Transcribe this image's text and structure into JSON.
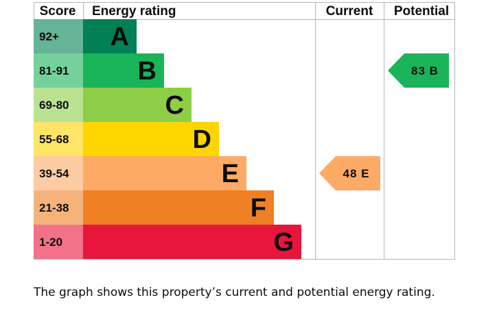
{
  "chart_data": {
    "type": "table",
    "title": "Energy rating",
    "columns": {
      "score": "Score",
      "rating": "Energy rating",
      "current": "Current",
      "potential": "Potential"
    },
    "bands": [
      {
        "score": "92+",
        "letter": "A",
        "min": 92,
        "color": "#008054",
        "score_bg": "#66b397"
      },
      {
        "score": "81-91",
        "letter": "B",
        "min": 81,
        "color": "#19b459",
        "score_bg": "#75d19c"
      },
      {
        "score": "69-80",
        "letter": "C",
        "min": 69,
        "color": "#8dce46",
        "score_bg": "#bbe292"
      },
      {
        "score": "55-68",
        "letter": "D",
        "min": 55,
        "color": "#ffd500",
        "score_bg": "#ffe566"
      },
      {
        "score": "39-54",
        "letter": "E",
        "min": 39,
        "color": "#fcaa65",
        "score_bg": "#fdcca3"
      },
      {
        "score": "21-38",
        "letter": "F",
        "min": 21,
        "color": "#ef8023",
        "score_bg": "#f5b37b"
      },
      {
        "score": "1-20",
        "letter": "G",
        "min": 1,
        "color": "#e9153b",
        "score_bg": "#f27389"
      }
    ],
    "current": {
      "value": 48,
      "letter": "E",
      "label": "48 E",
      "color": "#fcaa65"
    },
    "potential": {
      "value": 83,
      "letter": "B",
      "label": "83 B",
      "color": "#19b459"
    }
  },
  "caption": "The graph shows this property’s current and potential energy rating."
}
